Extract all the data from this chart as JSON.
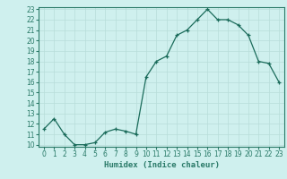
{
  "title": "",
  "xlabel": "Humidex (Indice chaleur)",
  "ylabel": "",
  "x": [
    0,
    1,
    2,
    3,
    4,
    5,
    6,
    7,
    8,
    9,
    10,
    11,
    12,
    13,
    14,
    15,
    16,
    17,
    18,
    19,
    20,
    21,
    22,
    23
  ],
  "y": [
    11.5,
    12.5,
    11.0,
    10.0,
    10.0,
    10.2,
    11.2,
    11.5,
    11.3,
    11.0,
    16.5,
    18.0,
    18.5,
    20.5,
    21.0,
    22.0,
    23.0,
    22.0,
    22.0,
    21.5,
    20.5,
    18.0,
    17.8,
    16.0
  ],
  "line_color": "#1a6b5a",
  "marker": "+",
  "marker_size": 3,
  "bg_color": "#cff0ee",
  "grid_color": "#b8ddd9",
  "ylim": [
    10,
    23
  ],
  "xlim": [
    -0.5,
    23.5
  ],
  "yticks": [
    10,
    11,
    12,
    13,
    14,
    15,
    16,
    17,
    18,
    19,
    20,
    21,
    22,
    23
  ],
  "xticks": [
    0,
    1,
    2,
    3,
    4,
    5,
    6,
    7,
    8,
    9,
    10,
    11,
    12,
    13,
    14,
    15,
    16,
    17,
    18,
    19,
    20,
    21,
    22,
    23
  ],
  "label_fontsize": 6.5,
  "tick_fontsize": 5.5,
  "spine_color": "#2a7a68"
}
